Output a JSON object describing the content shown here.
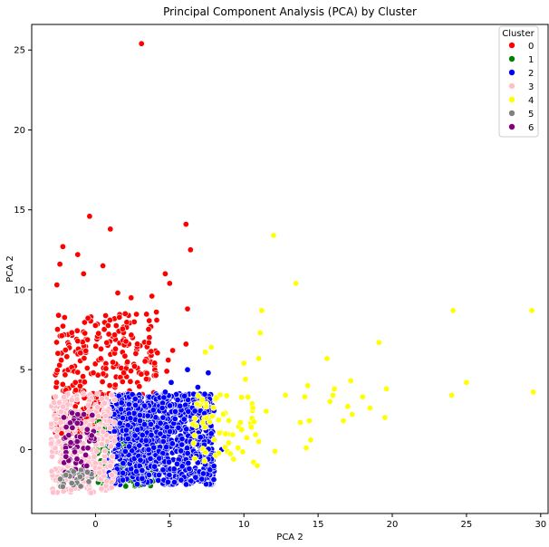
{
  "chart_data": {
    "type": "scatter",
    "title": "Principal Component Analysis (PCA) by Cluster",
    "xlabel": "PCA 2",
    "ylabel": "PCA 2",
    "xlim": [
      -4.3,
      30.5
    ],
    "ylim": [
      -4.0,
      26.6
    ],
    "xticks": [
      0,
      5,
      10,
      15,
      20,
      25,
      30
    ],
    "yticks": [
      0,
      5,
      10,
      15,
      20,
      25
    ],
    "grid": false,
    "legend": {
      "title": "Cluster",
      "placement": "top-right"
    },
    "series": [
      {
        "name": "0",
        "color": "#ff0000",
        "region": {
          "x": [
            -2.8,
            4.2
          ],
          "y": [
            1.0,
            8.5
          ]
        },
        "points": [
          [
            3.1,
            25.4
          ],
          [
            -0.4,
            14.6
          ],
          [
            1.0,
            13.8
          ],
          [
            6.1,
            14.1
          ],
          [
            6.4,
            12.5
          ],
          [
            -2.2,
            12.7
          ],
          [
            -1.2,
            12.2
          ],
          [
            -2.4,
            11.6
          ],
          [
            0.5,
            11.5
          ],
          [
            -0.8,
            11.0
          ],
          [
            4.7,
            11.0
          ],
          [
            5.0,
            10.4
          ],
          [
            -2.6,
            10.3
          ],
          [
            3.8,
            9.6
          ],
          [
            1.5,
            9.8
          ],
          [
            2.4,
            9.5
          ],
          [
            6.2,
            8.8
          ],
          [
            4.1,
            8.6
          ],
          [
            2.0,
            8.5
          ],
          [
            6.1,
            6.6
          ],
          [
            5.2,
            6.2
          ],
          [
            4.9,
            5.6
          ],
          [
            4.8,
            4.9
          ]
        ]
      },
      {
        "name": "1",
        "color": "#008000",
        "region": {
          "x": [
            0.0,
            4.2
          ],
          "y": [
            -2.3,
            2.0
          ]
        },
        "points": [
          [
            0.5,
            -2.3
          ],
          [
            1.8,
            -2.0
          ],
          [
            3.4,
            1.7
          ],
          [
            0.2,
            1.2
          ]
        ]
      },
      {
        "name": "2",
        "color": "#0000ff",
        "region": {
          "x": [
            0.9,
            8.0
          ],
          "y": [
            -2.2,
            3.5
          ]
        },
        "points": [
          [
            7.6,
            4.8
          ],
          [
            6.2,
            5.0
          ],
          [
            5.1,
            4.2
          ],
          [
            4.7,
            3.6
          ],
          [
            6.9,
            3.9
          ],
          [
            7.8,
            1.0
          ],
          [
            8.5,
            0.0
          ],
          [
            7.6,
            -0.6
          ],
          [
            6.8,
            -0.4
          ],
          [
            5.5,
            -0.9
          ],
          [
            3.0,
            1.8
          ],
          [
            4.5,
            2.6
          ]
        ]
      },
      {
        "name": "3",
        "color": "#ffc0cb",
        "region": {
          "x": [
            -3.0,
            1.3
          ],
          "y": [
            -2.7,
            3.5
          ]
        },
        "points": [
          [
            -0.3,
            -2.7
          ],
          [
            0.5,
            2.8
          ],
          [
            -1.6,
            3.1
          ],
          [
            0.6,
            2.9
          ]
        ]
      },
      {
        "name": "4",
        "color": "#ffff00",
        "region": {
          "x": [
            6.5,
            11.0
          ],
          "y": [
            -1.0,
            3.5
          ]
        },
        "points": [
          [
            12.0,
            13.4
          ],
          [
            13.5,
            10.4
          ],
          [
            11.2,
            8.7
          ],
          [
            24.1,
            8.7
          ],
          [
            29.4,
            8.7
          ],
          [
            11.1,
            7.3
          ],
          [
            19.1,
            6.7
          ],
          [
            7.8,
            6.4
          ],
          [
            7.4,
            6.1
          ],
          [
            15.6,
            5.7
          ],
          [
            10.0,
            5.4
          ],
          [
            11.0,
            5.7
          ],
          [
            10.1,
            4.4
          ],
          [
            14.3,
            4.0
          ],
          [
            17.2,
            4.3
          ],
          [
            25.0,
            4.2
          ],
          [
            29.5,
            3.6
          ],
          [
            19.6,
            3.8
          ],
          [
            16.1,
            3.8
          ],
          [
            12.8,
            3.4
          ],
          [
            14.1,
            3.3
          ],
          [
            15.8,
            3.0
          ],
          [
            16.0,
            3.4
          ],
          [
            18.0,
            3.3
          ],
          [
            24.0,
            3.4
          ],
          [
            17.0,
            2.7
          ],
          [
            18.5,
            2.6
          ],
          [
            17.3,
            2.2
          ],
          [
            13.8,
            1.7
          ],
          [
            16.7,
            1.8
          ],
          [
            19.5,
            2.0
          ],
          [
            14.4,
            1.8
          ],
          [
            14.5,
            0.6
          ],
          [
            14.2,
            0.1
          ],
          [
            12.1,
            -0.1
          ],
          [
            10.5,
            1.4
          ],
          [
            11.0,
            0.5
          ],
          [
            9.6,
            0.1
          ],
          [
            9.3,
            -0.6
          ],
          [
            10.9,
            -1.0
          ],
          [
            10.6,
            2.6
          ],
          [
            11.5,
            2.4
          ]
        ]
      },
      {
        "name": "5",
        "color": "#808080",
        "region": {
          "x": [
            -2.4,
            -0.2
          ],
          "y": [
            -2.4,
            -1.2
          ]
        },
        "points": [
          [
            -1.6,
            -2.1
          ],
          [
            -1.0,
            -2.3
          ],
          [
            -2.0,
            -1.6
          ]
        ]
      },
      {
        "name": "6",
        "color": "#800080",
        "region": {
          "x": [
            -2.2,
            0.0
          ],
          "y": [
            -1.8,
            2.4
          ]
        },
        "points": [
          [
            -1.2,
            2.2
          ],
          [
            -0.6,
            -1.4
          ],
          [
            -1.8,
            0.9
          ]
        ]
      }
    ]
  }
}
